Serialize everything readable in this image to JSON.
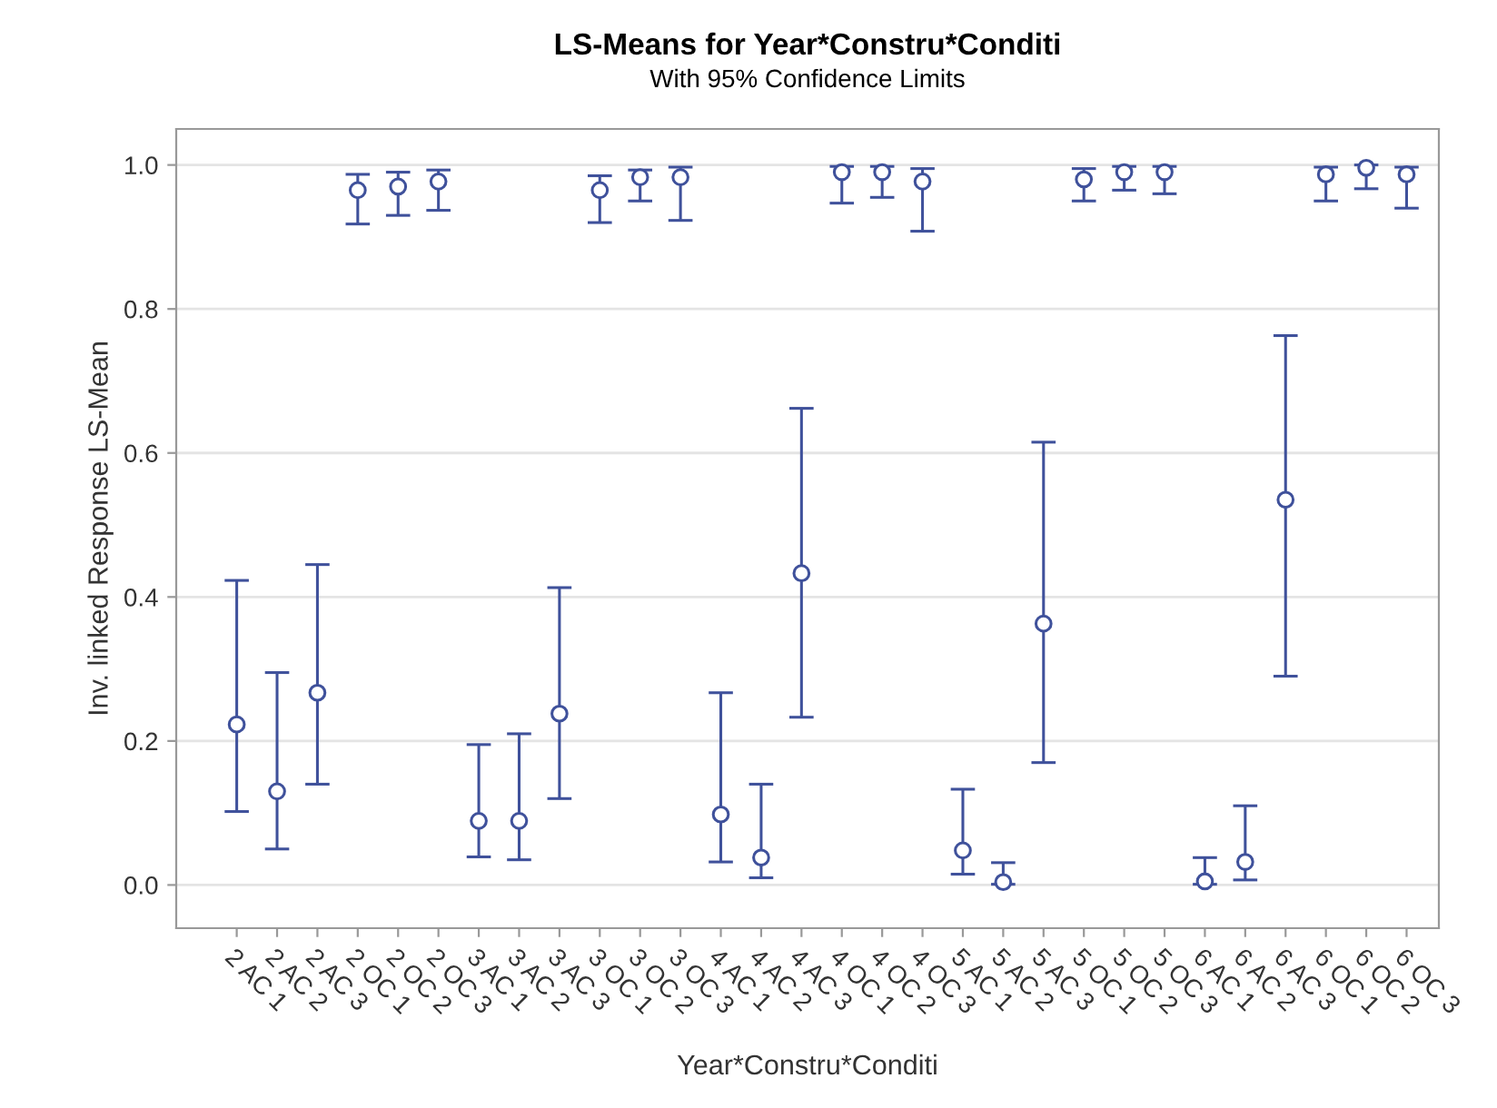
{
  "chart_data": {
    "type": "scatter",
    "title": "LS-Means for Year*Constru*Conditi",
    "subtitle": "With 95% Confidence Limits",
    "xlabel": "Year*Constru*Conditi",
    "ylabel": "Inv. linked Response LS-Mean",
    "categories": [
      "2 AC 1",
      "2 AC 2",
      "2 AC 3",
      "2 OC 1",
      "2 OC 2",
      "2 OC 3",
      "3 AC 1",
      "3 AC 2",
      "3 AC 3",
      "3 OC 1",
      "3 OC 2",
      "3 OC 3",
      "4 AC 1",
      "4 AC 2",
      "4 AC 3",
      "4 OC 1",
      "4 OC 2",
      "4 OC 3",
      "5 AC 1",
      "5 AC 2",
      "5 AC 3",
      "5 OC 1",
      "5 OC 2",
      "5 OC 3",
      "6 AC 1",
      "6 AC 2",
      "6 AC 3",
      "6 OC 1",
      "6 OC 2",
      "6 OC 3"
    ],
    "series": [
      {
        "color": "#3f519b",
        "values": [
          0.223,
          0.13,
          0.267,
          0.965,
          0.97,
          0.977,
          0.089,
          0.089,
          0.238,
          0.965,
          0.983,
          0.983,
          0.098,
          0.038,
          0.433,
          0.99,
          0.99,
          0.977,
          0.048,
          0.004,
          0.363,
          0.98,
          0.99,
          0.99,
          0.005,
          0.032,
          0.535,
          0.987,
          0.996,
          0.987
        ],
        "errors": [
          [
            0.102,
            0.423
          ],
          [
            0.05,
            0.295
          ],
          [
            0.14,
            0.445
          ],
          [
            0.918,
            0.987
          ],
          [
            0.93,
            0.99
          ],
          [
            0.937,
            0.993
          ],
          [
            0.039,
            0.195
          ],
          [
            0.035,
            0.21
          ],
          [
            0.12,
            0.413
          ],
          [
            0.92,
            0.985
          ],
          [
            0.95,
            0.993
          ],
          [
            0.923,
            0.997
          ],
          [
            0.032,
            0.267
          ],
          [
            0.01,
            0.14
          ],
          [
            0.233,
            0.662
          ],
          [
            0.947,
            0.998
          ],
          [
            0.955,
            0.998
          ],
          [
            0.908,
            0.995
          ],
          [
            0.015,
            0.133
          ],
          [
            0.001,
            0.031
          ],
          [
            0.17,
            0.615
          ],
          [
            0.95,
            0.995
          ],
          [
            0.965,
            0.998
          ],
          [
            0.96,
            0.998
          ],
          [
            0.001,
            0.038
          ],
          [
            0.007,
            0.11
          ],
          [
            0.29,
            0.763
          ],
          [
            0.95,
            0.997
          ],
          [
            0.967,
            1.0
          ],
          [
            0.94,
            0.997
          ]
        ]
      }
    ],
    "ylim": [
      -0.06,
      1.05
    ],
    "yticks": [
      {
        "value": 0,
        "label": "0.0"
      },
      {
        "value": 0.2,
        "label": "0.2"
      },
      {
        "value": 0.4,
        "label": "0.4"
      },
      {
        "value": 0.6,
        "label": "0.6"
      },
      {
        "value": 0.8,
        "label": "0.8"
      },
      {
        "value": 1,
        "label": "1.0"
      }
    ],
    "grid": "y",
    "marker": "circle"
  }
}
